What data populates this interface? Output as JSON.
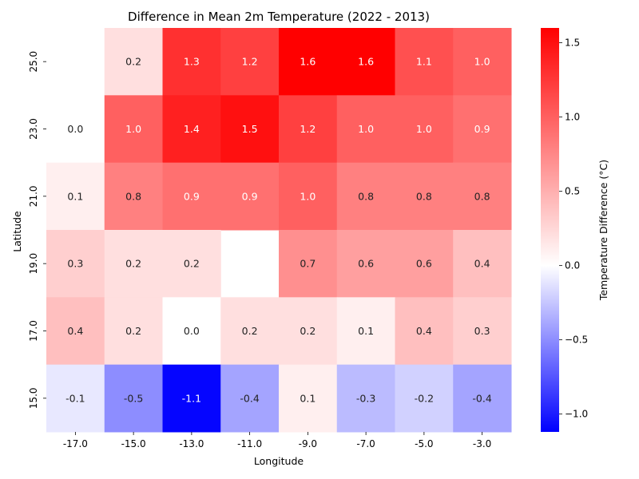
{
  "chart_data": {
    "type": "heatmap",
    "title": "Difference in Mean 2m Temperature (2022 - 2013)",
    "xlabel": "Longitude",
    "ylabel": "Latitude",
    "x_ticks": [
      "-17.0",
      "-15.0",
      "-13.0",
      "-11.0",
      "-9.0",
      "-7.0",
      "-5.0",
      "-3.0"
    ],
    "y_ticks": [
      "25.0",
      "23.0",
      "21.0",
      "19.0",
      "17.0",
      "15.0"
    ],
    "cells": [
      [
        null,
        0.2,
        1.3,
        1.2,
        1.6,
        1.6,
        1.1,
        1.0
      ],
      [
        -0.0,
        1.0,
        1.4,
        1.5,
        1.2,
        1.0,
        1.0,
        0.9
      ],
      [
        0.1,
        0.8,
        0.9,
        0.9,
        1.0,
        0.8,
        0.8,
        0.8
      ],
      [
        0.3,
        0.2,
        0.2,
        null,
        0.7,
        0.6,
        0.6,
        0.4
      ],
      [
        0.4,
        0.2,
        0.0,
        0.2,
        0.2,
        0.1,
        0.4,
        0.3
      ],
      [
        -0.1,
        -0.5,
        -1.1,
        -0.4,
        0.1,
        -0.3,
        -0.2,
        -0.4
      ]
    ],
    "colorbar": {
      "label": "Temperature Difference (°C)",
      "min": -1.12,
      "max": 1.6,
      "ticks": [
        "1.5",
        "1.0",
        "0.5",
        "0.0",
        "−0.5",
        "−1.0"
      ],
      "tick_values": [
        1.5,
        1.0,
        0.5,
        0.0,
        -0.5,
        -1.0
      ],
      "colormap": "bwr",
      "low_color": "#0000ff",
      "mid_color": "#ffffff",
      "high_color": "#ff0000"
    },
    "grid": false
  }
}
